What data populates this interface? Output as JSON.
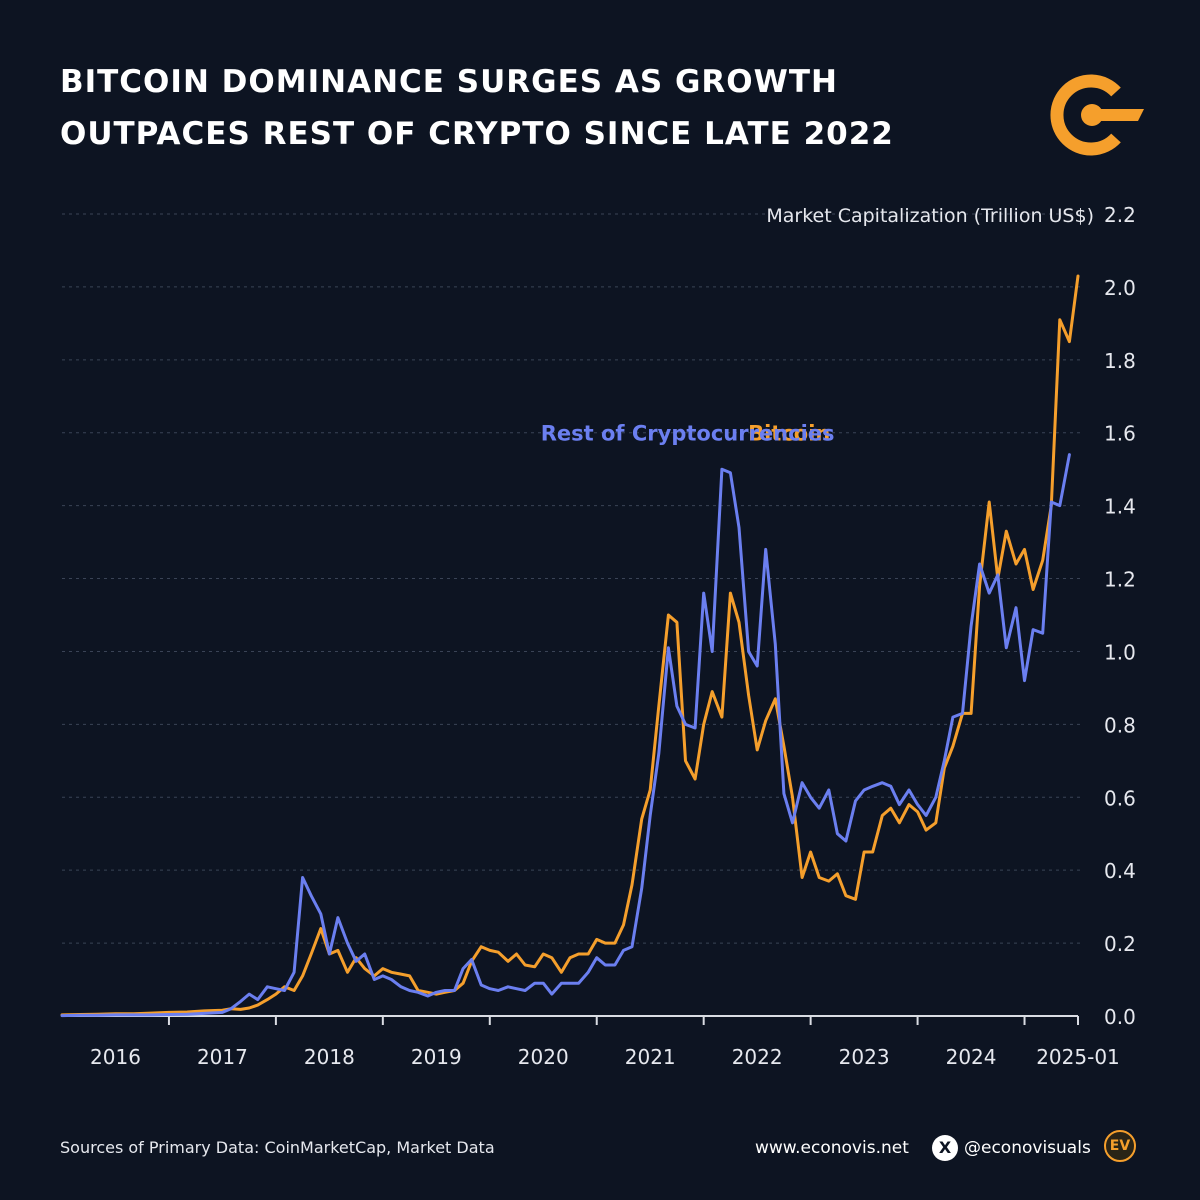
{
  "title_lines": [
    "BITCOIN DOMINANCE SURGES AS GROWTH",
    "OUTPACES REST OF CRYPTO SINCE LATE 2022"
  ],
  "logo_icon": "econovis-logo-icon",
  "footer": {
    "sources": "Sources of Primary Data: CoinMarketCap, Market Data",
    "website": "www.econovis.net",
    "x_icon": "x-twitter-icon",
    "x_glyph": "X",
    "handle": "@econovisuals",
    "badge_text": "EV"
  },
  "colors": {
    "background": "#0d1422",
    "bitcoin": "#f59f2c",
    "rest": "#6b7ff0",
    "grid": "#3a4356",
    "axis_text": "#e6e8ee"
  },
  "chart_data": {
    "type": "line",
    "title": "",
    "ylabel": "Market Capitalization (Trillion US$)",
    "xlabel": "",
    "ylim": [
      0,
      2.2
    ],
    "yticks": [
      0.0,
      0.2,
      0.4,
      0.6,
      0.8,
      1.0,
      1.2,
      1.4,
      1.6,
      1.8,
      2.0,
      2.2
    ],
    "ytick_labels": [
      "0.0",
      "0.2",
      "0.4",
      "0.6",
      "0.8",
      "1.0",
      "1.2",
      "1.4",
      "1.6",
      "1.8",
      "2.0",
      "2.2"
    ],
    "xlim": [
      2015.5,
      2025.0
    ],
    "xtick_labels": [
      {
        "label": "2016",
        "x": 2016.0
      },
      {
        "label": "2017",
        "x": 2017.0
      },
      {
        "label": "2018",
        "x": 2018.0
      },
      {
        "label": "2019",
        "x": 2019.0
      },
      {
        "label": "2020",
        "x": 2020.0
      },
      {
        "label": "2021",
        "x": 2021.0
      },
      {
        "label": "2022",
        "x": 2022.0
      },
      {
        "label": "2023",
        "x": 2023.0
      },
      {
        "label": "2024",
        "x": 2024.0
      },
      {
        "label": "2025-01",
        "x": 2025.0
      }
    ],
    "year_boundaries": [
      2016.5,
      2017.5,
      2018.5,
      2019.5,
      2020.5,
      2021.5,
      2022.5,
      2023.5,
      2024.5,
      2025.0
    ],
    "grid": true,
    "legend": "inline-labels",
    "series": [
      {
        "name": "Bitcoin",
        "label_x": 2022.3,
        "label_y": 1.6,
        "points": [
          [
            2015.5,
            0.003
          ],
          [
            2015.67,
            0.004
          ],
          [
            2015.83,
            0.005
          ],
          [
            2016.0,
            0.006
          ],
          [
            2016.17,
            0.006
          ],
          [
            2016.33,
            0.008
          ],
          [
            2016.5,
            0.01
          ],
          [
            2016.67,
            0.011
          ],
          [
            2016.83,
            0.014
          ],
          [
            2017.0,
            0.016
          ],
          [
            2017.08,
            0.02
          ],
          [
            2017.17,
            0.018
          ],
          [
            2017.25,
            0.022
          ],
          [
            2017.33,
            0.03
          ],
          [
            2017.42,
            0.045
          ],
          [
            2017.5,
            0.06
          ],
          [
            2017.58,
            0.08
          ],
          [
            2017.67,
            0.07
          ],
          [
            2017.75,
            0.11
          ],
          [
            2017.83,
            0.17
          ],
          [
            2017.92,
            0.24
          ],
          [
            2018.0,
            0.17
          ],
          [
            2018.08,
            0.18
          ],
          [
            2018.17,
            0.12
          ],
          [
            2018.25,
            0.16
          ],
          [
            2018.33,
            0.13
          ],
          [
            2018.42,
            0.11
          ],
          [
            2018.5,
            0.13
          ],
          [
            2018.58,
            0.12
          ],
          [
            2018.67,
            0.115
          ],
          [
            2018.75,
            0.11
          ],
          [
            2018.83,
            0.07
          ],
          [
            2018.92,
            0.065
          ],
          [
            2019.0,
            0.06
          ],
          [
            2019.08,
            0.065
          ],
          [
            2019.17,
            0.07
          ],
          [
            2019.25,
            0.09
          ],
          [
            2019.33,
            0.15
          ],
          [
            2019.42,
            0.19
          ],
          [
            2019.5,
            0.18
          ],
          [
            2019.58,
            0.175
          ],
          [
            2019.67,
            0.15
          ],
          [
            2019.75,
            0.17
          ],
          [
            2019.83,
            0.14
          ],
          [
            2019.92,
            0.135
          ],
          [
            2020.0,
            0.17
          ],
          [
            2020.08,
            0.16
          ],
          [
            2020.17,
            0.12
          ],
          [
            2020.25,
            0.16
          ],
          [
            2020.33,
            0.17
          ],
          [
            2020.42,
            0.17
          ],
          [
            2020.5,
            0.21
          ],
          [
            2020.58,
            0.2
          ],
          [
            2020.67,
            0.2
          ],
          [
            2020.75,
            0.25
          ],
          [
            2020.83,
            0.36
          ],
          [
            2020.92,
            0.54
          ],
          [
            2021.0,
            0.62
          ],
          [
            2021.08,
            0.85
          ],
          [
            2021.17,
            1.1
          ],
          [
            2021.25,
            1.08
          ],
          [
            2021.33,
            0.7
          ],
          [
            2021.42,
            0.65
          ],
          [
            2021.5,
            0.8
          ],
          [
            2021.58,
            0.89
          ],
          [
            2021.67,
            0.82
          ],
          [
            2021.75,
            1.16
          ],
          [
            2021.83,
            1.08
          ],
          [
            2021.92,
            0.88
          ],
          [
            2022.0,
            0.73
          ],
          [
            2022.08,
            0.81
          ],
          [
            2022.17,
            0.87
          ],
          [
            2022.25,
            0.74
          ],
          [
            2022.33,
            0.6
          ],
          [
            2022.42,
            0.38
          ],
          [
            2022.5,
            0.45
          ],
          [
            2022.58,
            0.38
          ],
          [
            2022.67,
            0.37
          ],
          [
            2022.75,
            0.39
          ],
          [
            2022.83,
            0.33
          ],
          [
            2022.92,
            0.32
          ],
          [
            2023.0,
            0.45
          ],
          [
            2023.08,
            0.45
          ],
          [
            2023.17,
            0.55
          ],
          [
            2023.25,
            0.57
          ],
          [
            2023.33,
            0.53
          ],
          [
            2023.42,
            0.58
          ],
          [
            2023.5,
            0.56
          ],
          [
            2023.58,
            0.51
          ],
          [
            2023.67,
            0.53
          ],
          [
            2023.75,
            0.68
          ],
          [
            2023.83,
            0.74
          ],
          [
            2023.92,
            0.83
          ],
          [
            2024.0,
            0.83
          ],
          [
            2024.08,
            1.18
          ],
          [
            2024.17,
            1.41
          ],
          [
            2024.25,
            1.2
          ],
          [
            2024.33,
            1.33
          ],
          [
            2024.42,
            1.24
          ],
          [
            2024.5,
            1.28
          ],
          [
            2024.58,
            1.17
          ],
          [
            2024.67,
            1.25
          ],
          [
            2024.75,
            1.4
          ],
          [
            2024.83,
            1.91
          ],
          [
            2024.92,
            1.85
          ],
          [
            2025.0,
            2.03
          ]
        ]
      },
      {
        "name": "Rest of Cryptocurrencies",
        "label_x": 2021.35,
        "label_y": 1.6,
        "points": [
          [
            2015.5,
            0.001
          ],
          [
            2015.67,
            0.002
          ],
          [
            2015.83,
            0.002
          ],
          [
            2016.0,
            0.003
          ],
          [
            2016.17,
            0.003
          ],
          [
            2016.33,
            0.003
          ],
          [
            2016.5,
            0.004
          ],
          [
            2016.67,
            0.005
          ],
          [
            2016.83,
            0.007
          ],
          [
            2017.0,
            0.01
          ],
          [
            2017.08,
            0.02
          ],
          [
            2017.17,
            0.04
          ],
          [
            2017.25,
            0.06
          ],
          [
            2017.33,
            0.045
          ],
          [
            2017.42,
            0.08
          ],
          [
            2017.5,
            0.075
          ],
          [
            2017.58,
            0.07
          ],
          [
            2017.67,
            0.12
          ],
          [
            2017.75,
            0.38
          ],
          [
            2017.83,
            0.33
          ],
          [
            2017.92,
            0.28
          ],
          [
            2018.0,
            0.17
          ],
          [
            2018.08,
            0.27
          ],
          [
            2018.17,
            0.2
          ],
          [
            2018.25,
            0.15
          ],
          [
            2018.33,
            0.17
          ],
          [
            2018.42,
            0.1
          ],
          [
            2018.5,
            0.11
          ],
          [
            2018.58,
            0.1
          ],
          [
            2018.67,
            0.08
          ],
          [
            2018.75,
            0.07
          ],
          [
            2018.83,
            0.065
          ],
          [
            2018.92,
            0.055
          ],
          [
            2019.0,
            0.065
          ],
          [
            2019.08,
            0.07
          ],
          [
            2019.17,
            0.07
          ],
          [
            2019.25,
            0.13
          ],
          [
            2019.33,
            0.155
          ],
          [
            2019.42,
            0.085
          ],
          [
            2019.5,
            0.075
          ],
          [
            2019.58,
            0.07
          ],
          [
            2019.67,
            0.08
          ],
          [
            2019.75,
            0.075
          ],
          [
            2019.83,
            0.07
          ],
          [
            2019.92,
            0.09
          ],
          [
            2020.0,
            0.09
          ],
          [
            2020.08,
            0.06
          ],
          [
            2020.17,
            0.09
          ],
          [
            2020.25,
            0.09
          ],
          [
            2020.33,
            0.09
          ],
          [
            2020.42,
            0.12
          ],
          [
            2020.5,
            0.16
          ],
          [
            2020.58,
            0.14
          ],
          [
            2020.67,
            0.14
          ],
          [
            2020.75,
            0.18
          ],
          [
            2020.83,
            0.19
          ],
          [
            2020.92,
            0.35
          ],
          [
            2021.0,
            0.55
          ],
          [
            2021.08,
            0.72
          ],
          [
            2021.17,
            1.01
          ],
          [
            2021.25,
            0.85
          ],
          [
            2021.33,
            0.8
          ],
          [
            2021.42,
            0.79
          ],
          [
            2021.5,
            1.16
          ],
          [
            2021.58,
            1.0
          ],
          [
            2021.67,
            1.5
          ],
          [
            2021.75,
            1.49
          ],
          [
            2021.83,
            1.34
          ],
          [
            2021.92,
            1.0
          ],
          [
            2022.0,
            0.96
          ],
          [
            2022.08,
            1.28
          ],
          [
            2022.17,
            1.02
          ],
          [
            2022.25,
            0.61
          ],
          [
            2022.33,
            0.53
          ],
          [
            2022.42,
            0.64
          ],
          [
            2022.5,
            0.6
          ],
          [
            2022.58,
            0.57
          ],
          [
            2022.67,
            0.62
          ],
          [
            2022.75,
            0.5
          ],
          [
            2022.83,
            0.48
          ],
          [
            2022.92,
            0.59
          ],
          [
            2023.0,
            0.62
          ],
          [
            2023.08,
            0.63
          ],
          [
            2023.17,
            0.64
          ],
          [
            2023.25,
            0.63
          ],
          [
            2023.33,
            0.58
          ],
          [
            2023.42,
            0.62
          ],
          [
            2023.5,
            0.58
          ],
          [
            2023.58,
            0.55
          ],
          [
            2023.67,
            0.6
          ],
          [
            2023.75,
            0.7
          ],
          [
            2023.83,
            0.82
          ],
          [
            2023.92,
            0.83
          ],
          [
            2024.0,
            1.07
          ],
          [
            2024.08,
            1.24
          ],
          [
            2024.17,
            1.16
          ],
          [
            2024.25,
            1.21
          ],
          [
            2024.33,
            1.01
          ],
          [
            2024.42,
            1.12
          ],
          [
            2024.5,
            0.92
          ],
          [
            2024.58,
            1.06
          ],
          [
            2024.67,
            1.05
          ],
          [
            2024.75,
            1.41
          ],
          [
            2024.83,
            1.4
          ],
          [
            2024.92,
            1.54
          ]
        ]
      }
    ]
  }
}
